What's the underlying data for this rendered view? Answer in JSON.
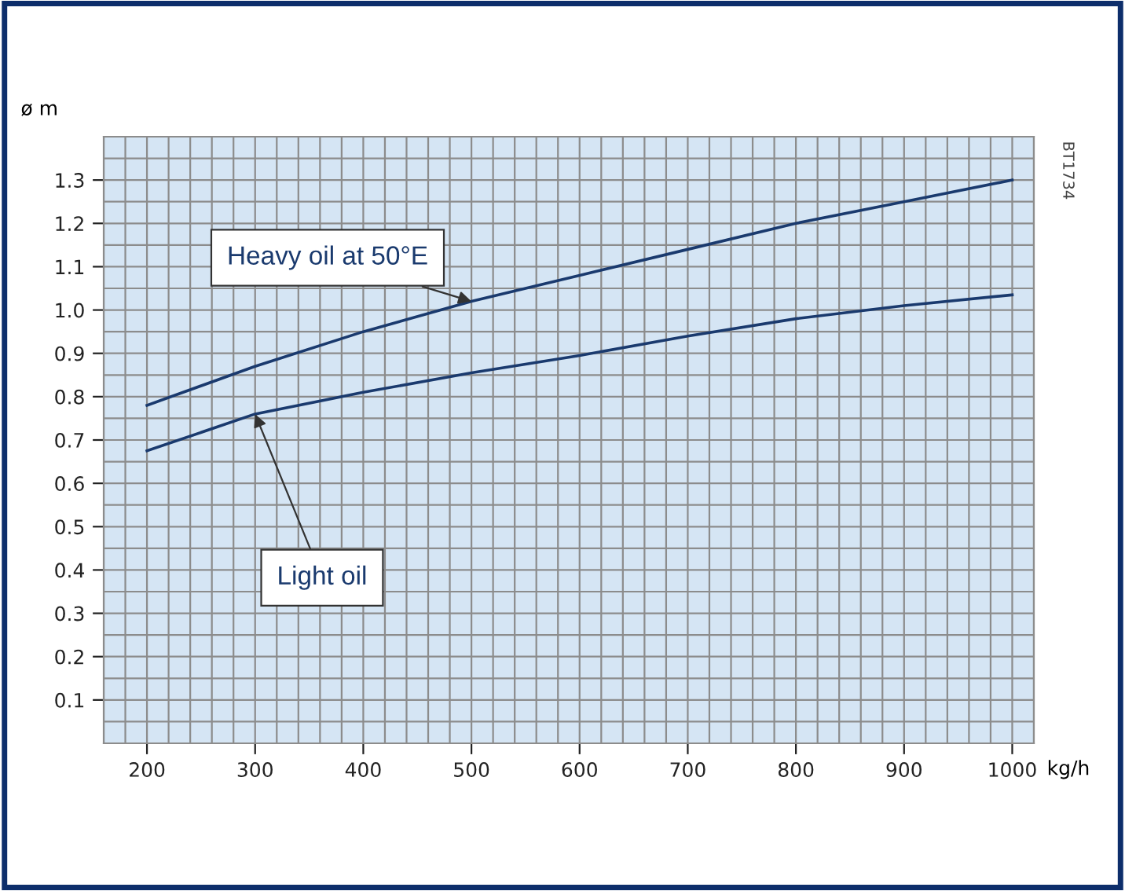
{
  "chart_data": {
    "type": "line",
    "xlabel": "kg/h",
    "ylabel": "ø m",
    "x": [
      200,
      300,
      400,
      500,
      600,
      700,
      800,
      900,
      1000
    ],
    "series": [
      {
        "name": "Heavy oil at 50°E",
        "color": "#1a3a6e",
        "values": [
          0.78,
          0.87,
          0.95,
          1.02,
          1.08,
          1.14,
          1.2,
          1.25,
          1.3
        ]
      },
      {
        "name": "Light oil",
        "color": "#1a3a6e",
        "values": [
          0.675,
          0.76,
          0.81,
          0.855,
          0.895,
          0.94,
          0.98,
          1.01,
          1.035
        ]
      }
    ],
    "xlim": [
      160,
      1020
    ],
    "ylim": [
      0,
      1.4
    ],
    "xticks": [
      200,
      300,
      400,
      500,
      600,
      700,
      800,
      900,
      1000
    ],
    "yticks": [
      0.1,
      0.2,
      0.3,
      0.4,
      0.5,
      0.6,
      0.7,
      0.8,
      0.9,
      {
        "value": 1.0,
        "label": "1.0"
      },
      1.1,
      1.2,
      1.3
    ],
    "grid": true,
    "marker": "none",
    "line_style": "solid",
    "annotations": [
      "BT1734"
    ]
  }
}
